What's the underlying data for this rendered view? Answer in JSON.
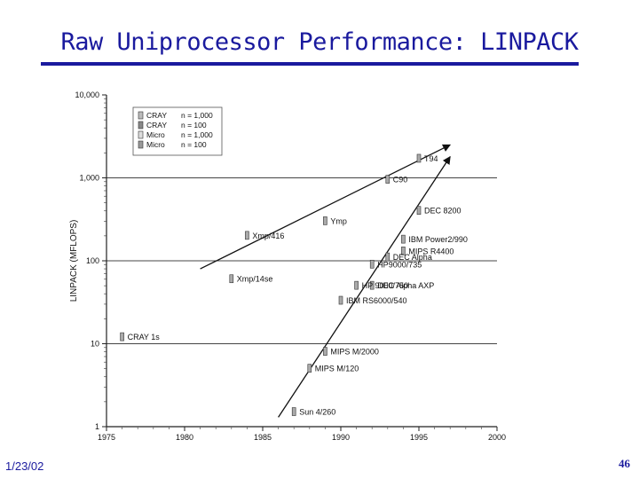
{
  "slide": {
    "title": "Raw Uniprocessor Performance: LINPACK",
    "date": "1/23/02",
    "page_number": "46"
  },
  "chart_data": {
    "type": "scatter",
    "title": "",
    "xlabel": "",
    "ylabel": "LINPACK (MFLOPS)",
    "x_ticks": [
      "1975",
      "1980",
      "1985",
      "1990",
      "1995",
      "2000"
    ],
    "y_ticks": [
      "1",
      "10",
      "100",
      "1,000",
      "10,000"
    ],
    "xlim": [
      1975,
      2000
    ],
    "ylim": [
      1,
      10000
    ],
    "y_scale": "log",
    "grid": "horizontal at decades",
    "legend": {
      "placement": "top-left",
      "entries": [
        {
          "name": "CRAY",
          "value": "n = 1,000"
        },
        {
          "name": "CRAY",
          "value": "n = 100"
        },
        {
          "name": "Micro",
          "value": "n = 1,000"
        },
        {
          "name": "Micro",
          "value": "n = 100"
        }
      ]
    },
    "points": [
      {
        "label": "CRAY 1s",
        "x": 1976,
        "y": 12
      },
      {
        "label": "Xmp/14se",
        "x": 1983,
        "y": 60
      },
      {
        "label": "Xmp/416",
        "x": 1984,
        "y": 200
      },
      {
        "label": "Ymp",
        "x": 1989,
        "y": 300
      },
      {
        "label": "C90",
        "x": 1993,
        "y": 950
      },
      {
        "label": "T94",
        "x": 1995,
        "y": 1700
      },
      {
        "label": "DEC 8200",
        "x": 1995,
        "y": 400
      },
      {
        "label": "IBM Power2/990",
        "x": 1994,
        "y": 180
      },
      {
        "label": "MIPS R4400",
        "x": 1994,
        "y": 130
      },
      {
        "label": "DEC Alpha",
        "x": 1993,
        "y": 110
      },
      {
        "label": "HP9000/735",
        "x": 1992,
        "y": 90
      },
      {
        "label": "DEC Alpha AXP",
        "x": 1992,
        "y": 50
      },
      {
        "label": "HP 9000/750",
        "x": 1991,
        "y": 50
      },
      {
        "label": "IBM RS6000/540",
        "x": 1990,
        "y": 33
      },
      {
        "label": "MIPS M/2000",
        "x": 1989,
        "y": 8
      },
      {
        "label": "MIPS M/120",
        "x": 1988,
        "y": 5
      },
      {
        "label": "Sun 4/260",
        "x": 1987,
        "y": 1.5
      }
    ],
    "trend_lines": [
      {
        "from": [
          1981,
          80
        ],
        "to": [
          1997,
          2500
        ]
      },
      {
        "from": [
          1986,
          1.3
        ],
        "to": [
          1997,
          1800
        ]
      }
    ]
  }
}
